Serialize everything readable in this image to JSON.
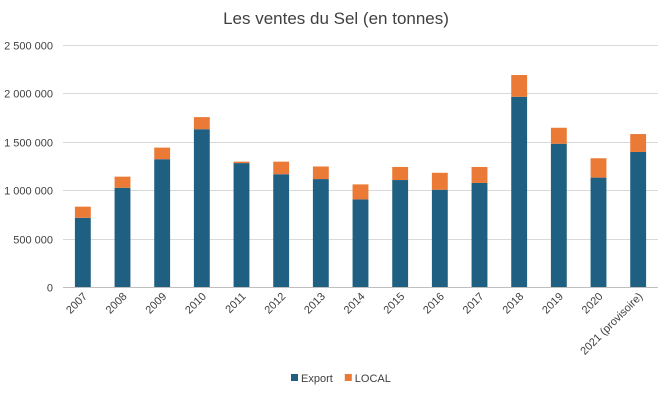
{
  "chart_data": {
    "type": "bar",
    "stacked": true,
    "title": "Les ventes du Sel (en tonnes)",
    "categories": [
      "2007",
      "2008",
      "2009",
      "2010",
      "2011",
      "2012",
      "2013",
      "2014",
      "2015",
      "2016",
      "2017",
      "2018",
      "2019",
      "2020",
      "2021 (provisoire)"
    ],
    "series": [
      {
        "name": "Export",
        "color": "#1f5f82",
        "values": [
          715000,
          1025000,
          1320000,
          1630000,
          1280000,
          1165000,
          1115000,
          905000,
          1105000,
          1005000,
          1075000,
          1965000,
          1480000,
          1130000,
          1395000
        ]
      },
      {
        "name": "LOCAL",
        "color": "#ea7a35",
        "values": [
          115000,
          115000,
          120000,
          125000,
          15000,
          130000,
          130000,
          155000,
          135000,
          175000,
          165000,
          225000,
          165000,
          200000,
          185000
        ]
      }
    ],
    "ylim": [
      0,
      2500000
    ],
    "yticks": [
      0,
      500000,
      1000000,
      1500000,
      2000000,
      2500000
    ],
    "ytick_labels": [
      "0",
      "500 000",
      "1 000 000",
      "1 500 000",
      "2 000 000",
      "2 500 000"
    ],
    "grid": true,
    "legend_position": "bottom"
  }
}
